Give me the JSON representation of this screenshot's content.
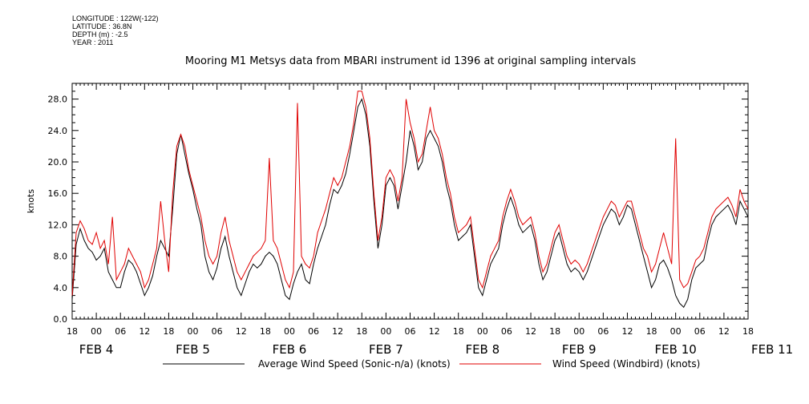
{
  "header": {
    "longitude": "LONGITUDE : 122W(-122)",
    "latitude": "LATITUDE : 36.8N",
    "depth": "DEPTH (m) : -2.5",
    "year": "YEAR : 2011"
  },
  "chart_data": {
    "type": "line",
    "title": "Mooring M1 Metsys data from MBARI instrument id 1396 at original sampling intervals",
    "ylabel": "knots",
    "xlabel": "",
    "ylim": [
      0,
      30
    ],
    "xlim_hours": [
      0,
      168
    ],
    "y_ticks": [
      "0.0",
      "4.0",
      "8.0",
      "12.0",
      "16.0",
      "20.0",
      "24.0",
      "28.0"
    ],
    "x_hour_ticks": [
      "18",
      "00",
      "06",
      "12",
      "18",
      "00",
      "06",
      "12",
      "18",
      "00",
      "06",
      "12",
      "18",
      "00",
      "06",
      "12",
      "18",
      "00",
      "06",
      "12",
      "18",
      "00",
      "06",
      "12",
      "18",
      "00",
      "06",
      "12",
      "18"
    ],
    "x_day_labels": [
      "FEB  4",
      "FEB  5",
      "FEB  6",
      "FEB  7",
      "FEB  8",
      "FEB  9",
      "FEB 10",
      "FEB 11"
    ],
    "grid": false,
    "legend_position": "bottom",
    "series": [
      {
        "name": "Average Wind Speed (Sonic-n/a) (knots)",
        "color": "#000000",
        "x": [
          0,
          1,
          2,
          3,
          4,
          5,
          6,
          7,
          8,
          9,
          10,
          11,
          12,
          13,
          14,
          15,
          16,
          17,
          18,
          19,
          20,
          21,
          22,
          23,
          24,
          25,
          26,
          27,
          28,
          29,
          30,
          31,
          32,
          33,
          34,
          35,
          36,
          37,
          38,
          39,
          40,
          41,
          42,
          43,
          44,
          45,
          46,
          47,
          48,
          49,
          50,
          51,
          52,
          53,
          54,
          55,
          56,
          57,
          58,
          59,
          60,
          61,
          62,
          63,
          64,
          65,
          66,
          67,
          68,
          69,
          70,
          71,
          72,
          73,
          74,
          75,
          76,
          77,
          78,
          79,
          80,
          81,
          82,
          83,
          84,
          85,
          86,
          87,
          88,
          89,
          90,
          91,
          92,
          93,
          94,
          95,
          96,
          97,
          98,
          99,
          100,
          101,
          102,
          103,
          104,
          105,
          106,
          107,
          108,
          109,
          110,
          111,
          112,
          113,
          114,
          115,
          116,
          117,
          118,
          119,
          120,
          121,
          122,
          123,
          124,
          125,
          126,
          127,
          128,
          129,
          130,
          131,
          132,
          133,
          134,
          135,
          136,
          137,
          138,
          139,
          140,
          141,
          142,
          143,
          144,
          145,
          146,
          147,
          148,
          149,
          150,
          151,
          152,
          153,
          154,
          155,
          156,
          157,
          158,
          159,
          160,
          161,
          162,
          163,
          164,
          165,
          166,
          167,
          168
        ],
        "values": [
          2.5,
          9.5,
          11.5,
          10.0,
          9.0,
          8.5,
          7.5,
          8.0,
          9.0,
          6.0,
          5.0,
          4.0,
          4.0,
          6.0,
          7.5,
          7.0,
          6.0,
          4.5,
          3.0,
          4.0,
          5.5,
          8.0,
          10.0,
          9.0,
          8.0,
          14.0,
          21.0,
          23.5,
          21.0,
          18.5,
          16.5,
          14.0,
          12.0,
          8.0,
          6.0,
          5.0,
          6.5,
          9.0,
          10.5,
          8.0,
          6.0,
          4.0,
          3.0,
          4.5,
          6.0,
          7.0,
          6.5,
          7.0,
          8.0,
          8.5,
          8.0,
          7.0,
          5.0,
          3.0,
          2.5,
          4.5,
          6.0,
          7.0,
          5.0,
          4.5,
          7.0,
          9.0,
          10.5,
          12.0,
          14.5,
          16.5,
          16.0,
          17.0,
          18.5,
          21.0,
          24.0,
          27.0,
          28.0,
          26.0,
          22.0,
          15.0,
          9.0,
          12.0,
          17.0,
          18.0,
          17.0,
          14.0,
          17.0,
          20.0,
          24.0,
          22.0,
          19.0,
          20.0,
          23.0,
          24.0,
          23.0,
          22.0,
          20.0,
          17.0,
          15.0,
          12.0,
          10.0,
          10.5,
          11.0,
          12.0,
          8.0,
          4.0,
          3.0,
          5.0,
          7.0,
          8.0,
          9.0,
          12.0,
          14.0,
          15.5,
          14.0,
          12.0,
          11.0,
          11.5,
          12.0,
          10.0,
          7.0,
          5.0,
          6.0,
          8.0,
          10.0,
          11.0,
          9.0,
          7.0,
          6.0,
          6.5,
          6.0,
          5.0,
          6.0,
          7.5,
          9.0,
          10.5,
          12.0,
          13.0,
          14.0,
          13.5,
          12.0,
          13.0,
          14.5,
          14.0,
          12.0,
          10.0,
          8.0,
          6.0,
          4.0,
          5.0,
          7.0,
          7.5,
          6.5,
          5.0,
          3.0,
          2.0,
          1.5,
          2.5,
          5.0,
          6.5,
          7.0,
          7.5,
          10.0,
          12.0,
          13.0,
          13.5,
          14.0,
          14.5,
          13.5,
          12.0,
          15.0,
          14.0,
          13.0
        ]
      },
      {
        "name": "Wind Speed (Windbird) (knots)",
        "color": "#e00000",
        "x": [
          0,
          1,
          2,
          3,
          4,
          5,
          6,
          7,
          8,
          9,
          10,
          11,
          12,
          13,
          14,
          15,
          16,
          17,
          18,
          19,
          20,
          21,
          22,
          23,
          24,
          25,
          26,
          27,
          28,
          29,
          30,
          31,
          32,
          33,
          34,
          35,
          36,
          37,
          38,
          39,
          40,
          41,
          42,
          43,
          44,
          45,
          46,
          47,
          48,
          49,
          50,
          51,
          52,
          53,
          54,
          55,
          56,
          57,
          58,
          59,
          60,
          61,
          62,
          63,
          64,
          65,
          66,
          67,
          68,
          69,
          70,
          71,
          72,
          73,
          74,
          75,
          76,
          77,
          78,
          79,
          80,
          81,
          82,
          83,
          84,
          85,
          86,
          87,
          88,
          89,
          90,
          91,
          92,
          93,
          94,
          95,
          96,
          97,
          98,
          99,
          100,
          101,
          102,
          103,
          104,
          105,
          106,
          107,
          108,
          109,
          110,
          111,
          112,
          113,
          114,
          115,
          116,
          117,
          118,
          119,
          120,
          121,
          122,
          123,
          124,
          125,
          126,
          127,
          128,
          129,
          130,
          131,
          132,
          133,
          134,
          135,
          136,
          137,
          138,
          139,
          140,
          141,
          142,
          143,
          144,
          145,
          146,
          147,
          148,
          149,
          150,
          151,
          152,
          153,
          154,
          155,
          156,
          157,
          158,
          159,
          160,
          161,
          162,
          163,
          164,
          165,
          166,
          167,
          168
        ],
        "values": [
          3.0,
          11.0,
          12.5,
          11.5,
          10.0,
          9.5,
          11.0,
          9.0,
          10.0,
          7.0,
          13.0,
          5.0,
          6.0,
          7.0,
          9.0,
          8.0,
          7.0,
          6.0,
          4.0,
          5.0,
          7.0,
          9.0,
          15.0,
          10.0,
          6.0,
          16.0,
          22.0,
          23.5,
          22.0,
          19.0,
          17.0,
          15.0,
          13.0,
          10.0,
          8.0,
          7.0,
          8.0,
          11.0,
          13.0,
          10.0,
          8.0,
          6.0,
          5.0,
          6.0,
          7.0,
          8.0,
          8.5,
          9.0,
          10.0,
          20.5,
          10.0,
          9.0,
          7.0,
          5.0,
          4.0,
          6.0,
          27.5,
          8.0,
          7.0,
          6.5,
          8.0,
          11.0,
          12.5,
          14.0,
          16.0,
          18.0,
          17.0,
          18.0,
          20.0,
          22.0,
          25.0,
          29.0,
          29.0,
          27.0,
          23.0,
          16.0,
          10.0,
          13.0,
          18.0,
          19.0,
          18.0,
          15.0,
          18.0,
          28.0,
          25.0,
          23.0,
          20.0,
          21.0,
          24.0,
          27.0,
          24.0,
          23.0,
          21.0,
          18.0,
          16.0,
          13.0,
          11.0,
          11.5,
          12.0,
          13.0,
          9.0,
          5.0,
          4.0,
          6.0,
          8.0,
          9.0,
          10.0,
          13.0,
          15.0,
          16.5,
          15.0,
          13.0,
          12.0,
          12.5,
          13.0,
          11.0,
          8.0,
          6.0,
          7.0,
          9.0,
          11.0,
          12.0,
          10.0,
          8.0,
          7.0,
          7.5,
          7.0,
          6.0,
          7.0,
          8.5,
          10.0,
          11.5,
          13.0,
          14.0,
          15.0,
          14.5,
          13.0,
          14.0,
          15.0,
          15.0,
          13.0,
          11.0,
          9.0,
          8.0,
          6.0,
          7.0,
          9.0,
          11.0,
          9.0,
          7.0,
          23.0,
          5.0,
          4.0,
          4.5,
          6.0,
          7.5,
          8.0,
          9.0,
          11.0,
          13.0,
          14.0,
          14.5,
          15.0,
          15.5,
          14.5,
          13.0,
          16.5,
          15.0,
          14.0
        ]
      }
    ]
  }
}
